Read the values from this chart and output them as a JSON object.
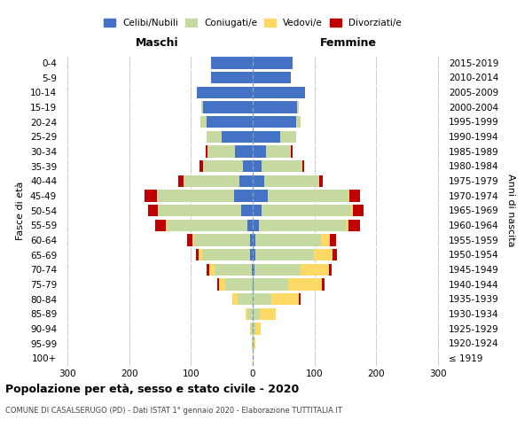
{
  "age_groups": [
    "100+",
    "95-99",
    "90-94",
    "85-89",
    "80-84",
    "75-79",
    "70-74",
    "65-69",
    "60-64",
    "55-59",
    "50-54",
    "45-49",
    "40-44",
    "35-39",
    "30-34",
    "25-29",
    "20-24",
    "15-19",
    "10-14",
    "5-9",
    "0-4"
  ],
  "birth_years": [
    "≤ 1919",
    "1920-1924",
    "1925-1929",
    "1930-1934",
    "1935-1939",
    "1940-1944",
    "1945-1949",
    "1950-1954",
    "1955-1959",
    "1960-1964",
    "1965-1969",
    "1970-1974",
    "1975-1979",
    "1980-1984",
    "1985-1989",
    "1990-1994",
    "1995-1999",
    "2000-2004",
    "2005-2009",
    "2010-2014",
    "2015-2019"
  ],
  "males": {
    "celibi": [
      0,
      0,
      0,
      0,
      0,
      0,
      2,
      4,
      5,
      8,
      18,
      30,
      22,
      16,
      28,
      50,
      75,
      80,
      90,
      68,
      68
    ],
    "coniugati": [
      0,
      2,
      3,
      8,
      25,
      45,
      60,
      78,
      90,
      130,
      135,
      125,
      90,
      65,
      45,
      25,
      10,
      3,
      0,
      0,
      0
    ],
    "vedovi": [
      0,
      0,
      2,
      4,
      8,
      10,
      8,
      5,
      3,
      2,
      1,
      0,
      0,
      0,
      0,
      0,
      0,
      0,
      0,
      0,
      0
    ],
    "divorziati": [
      0,
      0,
      0,
      0,
      0,
      3,
      5,
      5,
      8,
      18,
      15,
      20,
      8,
      5,
      3,
      0,
      0,
      0,
      0,
      0,
      0
    ]
  },
  "females": {
    "nubili": [
      0,
      0,
      0,
      0,
      0,
      2,
      3,
      4,
      5,
      10,
      15,
      25,
      18,
      15,
      22,
      45,
      70,
      72,
      85,
      62,
      65
    ],
    "coniugate": [
      0,
      2,
      5,
      12,
      30,
      55,
      75,
      95,
      105,
      140,
      145,
      130,
      90,
      65,
      40,
      25,
      8,
      2,
      0,
      0,
      0
    ],
    "vedove": [
      1,
      3,
      8,
      25,
      45,
      55,
      45,
      30,
      15,
      5,
      2,
      1,
      0,
      0,
      0,
      0,
      0,
      0,
      0,
      0,
      0
    ],
    "divorziate": [
      0,
      0,
      0,
      0,
      3,
      4,
      5,
      8,
      10,
      18,
      18,
      18,
      5,
      3,
      2,
      0,
      0,
      0,
      0,
      0,
      0
    ]
  },
  "colors": {
    "celibi_nubili": "#4472C4",
    "coniugati": "#C5D9A0",
    "vedovi": "#FFD966",
    "divorziati": "#C00000"
  },
  "xlim": [
    -310,
    310
  ],
  "xticks": [
    -300,
    -200,
    -100,
    0,
    100,
    200,
    300
  ],
  "xticklabels": [
    "300",
    "200",
    "100",
    "0",
    "100",
    "200",
    "300"
  ],
  "title": "Popolazione per età, sesso e stato civile - 2020",
  "subtitle": "COMUNE DI CASALSERUGO (PD) - Dati ISTAT 1° gennaio 2020 - Elaborazione TUTTITALIA.IT",
  "ylabel_left": "Fasce di età",
  "ylabel_right": "Anni di nascita",
  "header_maschi": "Maschi",
  "header_femmine": "Femmine",
  "legend_labels": [
    "Celibi/Nubili",
    "Coniugati/e",
    "Vedovi/e",
    "Divorziati/e"
  ],
  "legend_colors": [
    "#4472C4",
    "#C5D9A0",
    "#FFD966",
    "#C00000"
  ],
  "bg_color": "#FFFFFF",
  "grid_color": "#CCCCCC",
  "bar_height": 0.8
}
